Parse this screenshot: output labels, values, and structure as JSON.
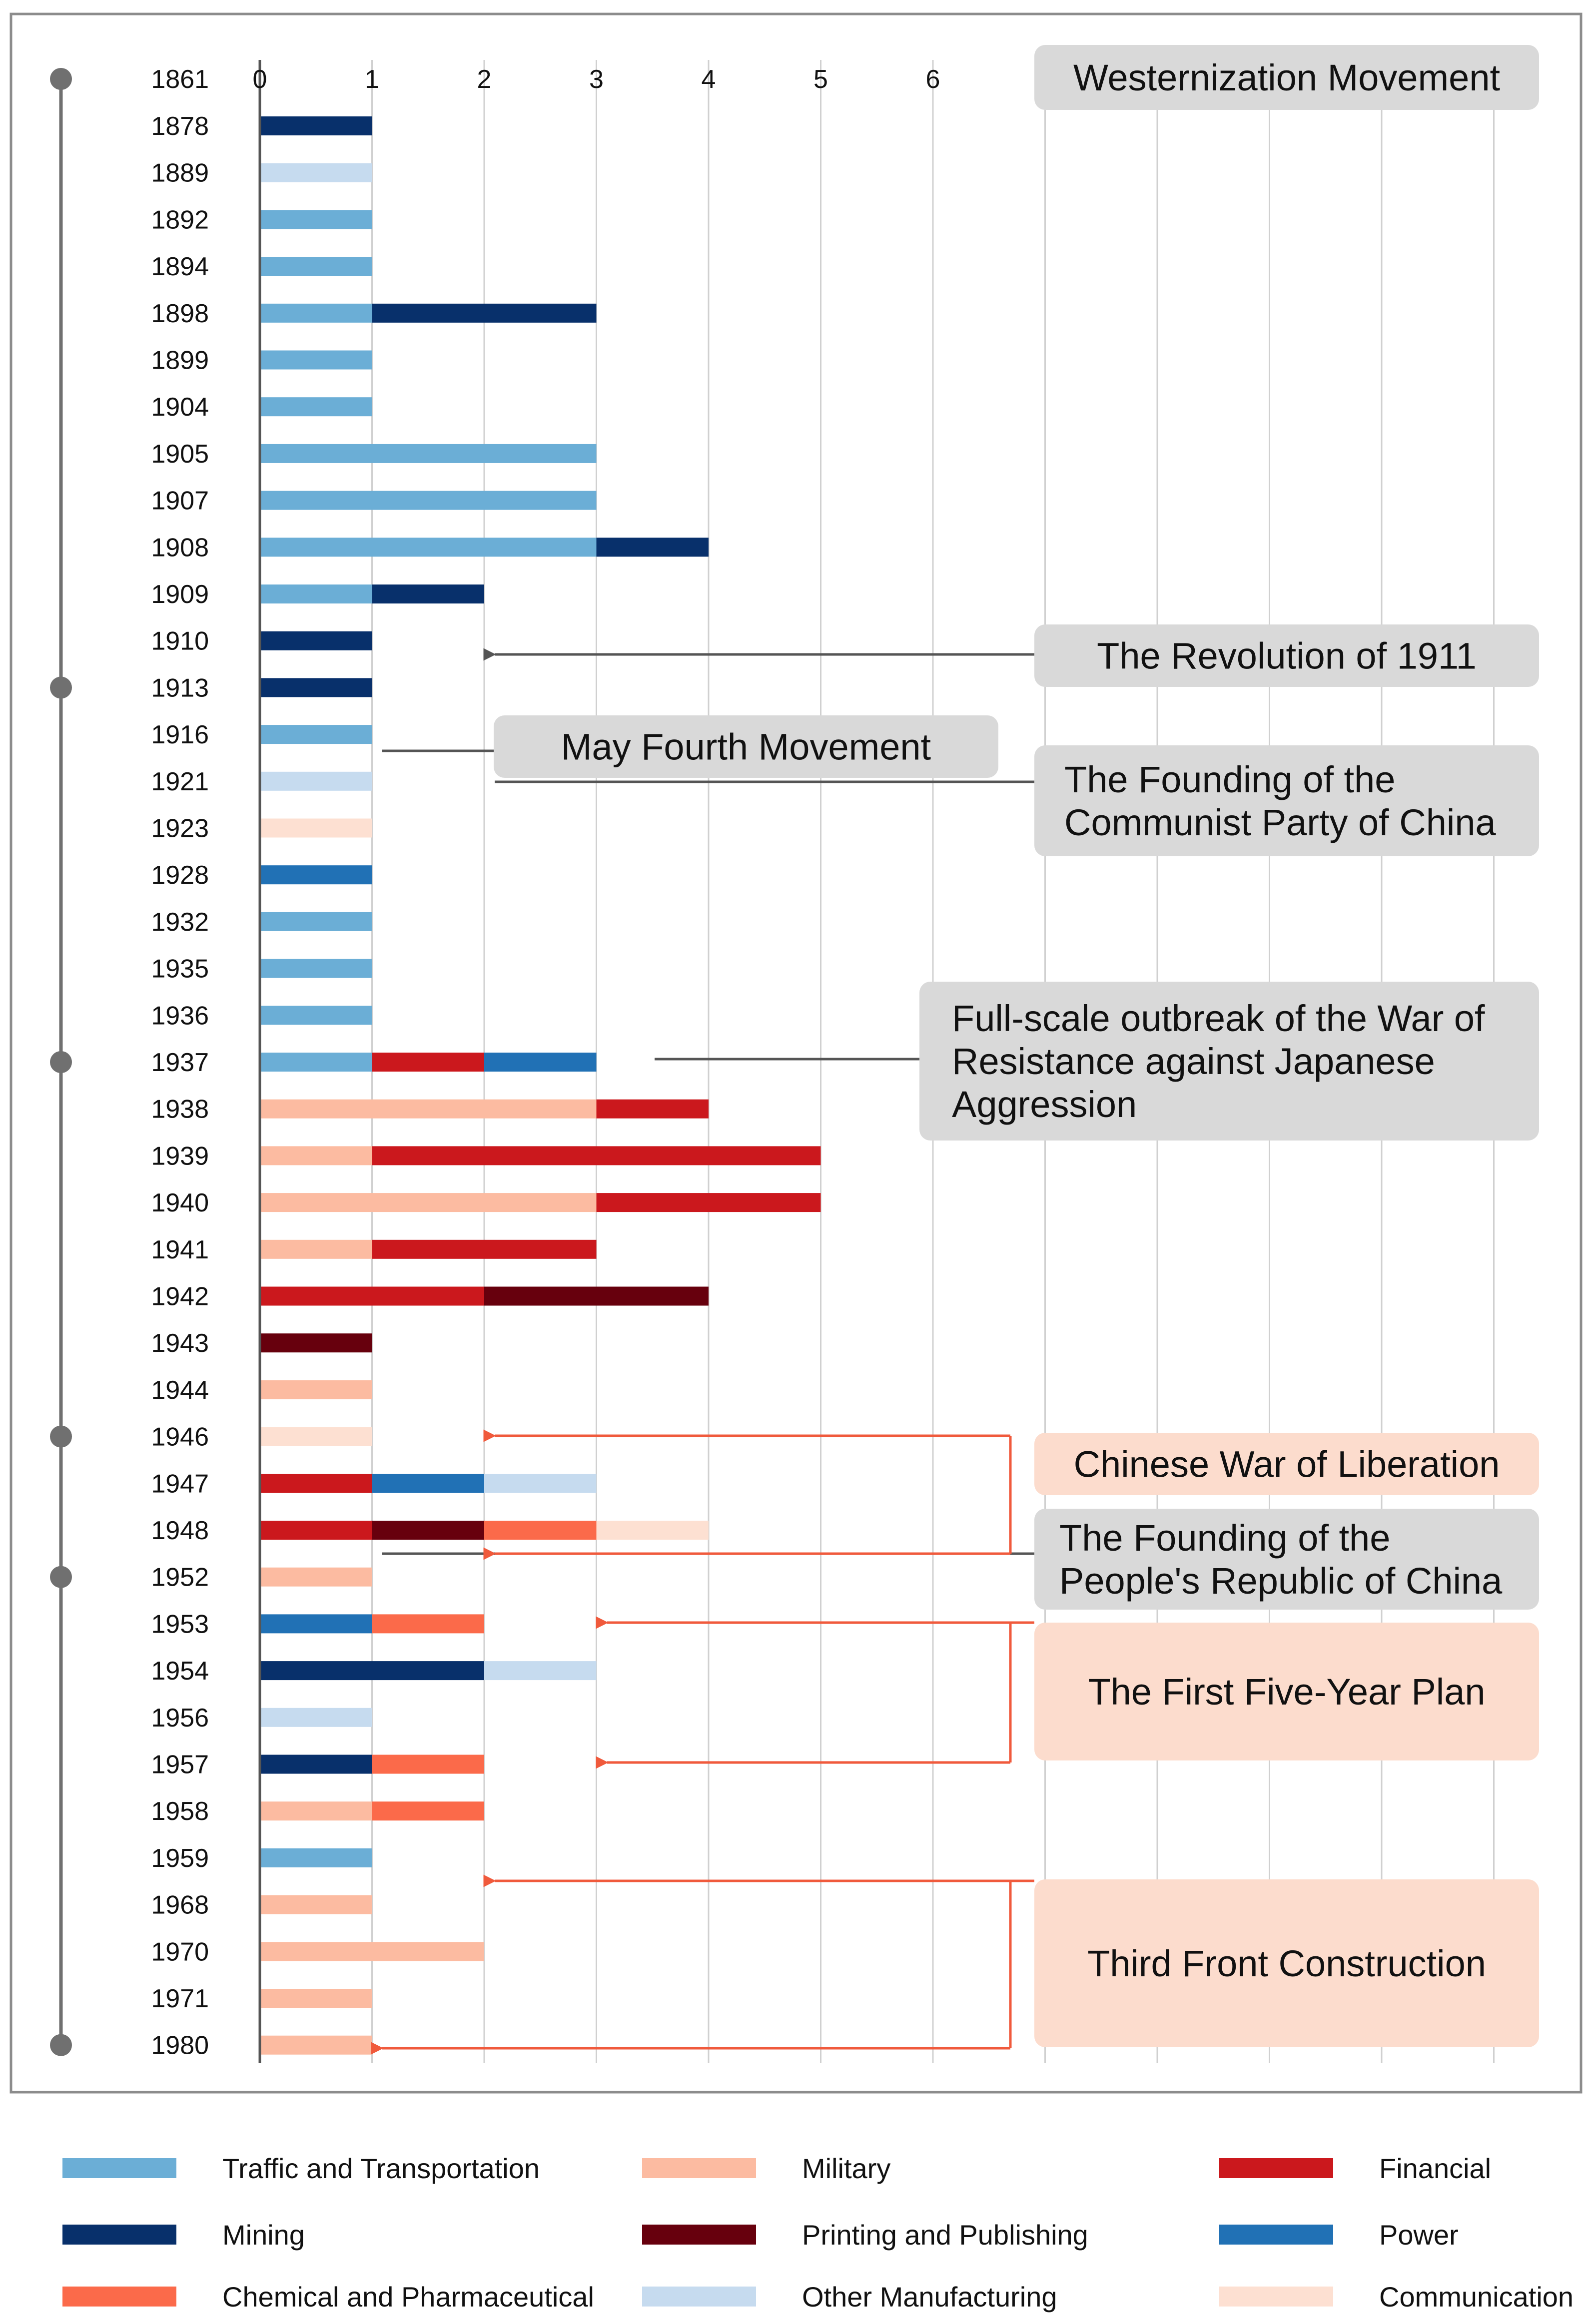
{
  "chart_data": {
    "type": "bar",
    "stacked": true,
    "orientation": "horizontal",
    "x_ticks": [
      0,
      1,
      2,
      3,
      4,
      5,
      6
    ],
    "xlim": [
      0,
      11
    ],
    "timeline_header": "1861",
    "milestone_years": [
      "1861",
      "1913",
      "1937",
      "1946",
      "1952",
      "1980"
    ],
    "categories": [
      {
        "key": "traffic",
        "name": "Traffic and Transportation",
        "color": "#6BAED6"
      },
      {
        "key": "military",
        "name": "Military",
        "color": "#FCBBA1"
      },
      {
        "key": "financial",
        "name": "Financial",
        "color": "#CB181D"
      },
      {
        "key": "mining",
        "name": "Mining",
        "color": "#08306B"
      },
      {
        "key": "printing",
        "name": "Printing and Publishing",
        "color": "#67000D"
      },
      {
        "key": "power",
        "name": "Power",
        "color": "#2171B5"
      },
      {
        "key": "chemical",
        "name": "Chemical and Pharmaceutical",
        "color": "#FB6A4A"
      },
      {
        "key": "other",
        "name": "Other Manufacturing",
        "color": "#C6DBEF"
      },
      {
        "key": "communication",
        "name": "Communication",
        "color": "#FDE0D2"
      }
    ],
    "rows": [
      {
        "year": "1878",
        "segments": [
          [
            "mining",
            1
          ]
        ]
      },
      {
        "year": "1889",
        "segments": [
          [
            "other",
            1
          ]
        ]
      },
      {
        "year": "1892",
        "segments": [
          [
            "traffic",
            1
          ]
        ]
      },
      {
        "year": "1894",
        "segments": [
          [
            "traffic",
            1
          ]
        ]
      },
      {
        "year": "1898",
        "segments": [
          [
            "traffic",
            1
          ],
          [
            "mining",
            2
          ]
        ]
      },
      {
        "year": "1899",
        "segments": [
          [
            "traffic",
            1
          ]
        ]
      },
      {
        "year": "1904",
        "segments": [
          [
            "traffic",
            1
          ]
        ]
      },
      {
        "year": "1905",
        "segments": [
          [
            "traffic",
            3
          ]
        ]
      },
      {
        "year": "1907",
        "segments": [
          [
            "traffic",
            3
          ]
        ]
      },
      {
        "year": "1908",
        "segments": [
          [
            "traffic",
            3
          ],
          [
            "mining",
            1
          ]
        ]
      },
      {
        "year": "1909",
        "segments": [
          [
            "traffic",
            1
          ],
          [
            "mining",
            1
          ]
        ]
      },
      {
        "year": "1910",
        "segments": [
          [
            "mining",
            1
          ]
        ]
      },
      {
        "year": "1913",
        "segments": [
          [
            "mining",
            1
          ]
        ]
      },
      {
        "year": "1916",
        "segments": [
          [
            "traffic",
            1
          ]
        ]
      },
      {
        "year": "1921",
        "segments": [
          [
            "other",
            1
          ]
        ]
      },
      {
        "year": "1923",
        "segments": [
          [
            "communication",
            1
          ]
        ]
      },
      {
        "year": "1928",
        "segments": [
          [
            "power",
            1
          ]
        ]
      },
      {
        "year": "1932",
        "segments": [
          [
            "traffic",
            1
          ]
        ]
      },
      {
        "year": "1935",
        "segments": [
          [
            "traffic",
            1
          ]
        ]
      },
      {
        "year": "1936",
        "segments": [
          [
            "traffic",
            1
          ]
        ]
      },
      {
        "year": "1937",
        "segments": [
          [
            "traffic",
            1
          ],
          [
            "financial",
            1
          ],
          [
            "power",
            1
          ]
        ]
      },
      {
        "year": "1938",
        "segments": [
          [
            "military",
            3
          ],
          [
            "financial",
            1
          ]
        ]
      },
      {
        "year": "1939",
        "segments": [
          [
            "military",
            1
          ],
          [
            "financial",
            4
          ]
        ]
      },
      {
        "year": "1940",
        "segments": [
          [
            "military",
            3
          ],
          [
            "financial",
            2
          ]
        ]
      },
      {
        "year": "1941",
        "segments": [
          [
            "military",
            1
          ],
          [
            "financial",
            2
          ]
        ]
      },
      {
        "year": "1942",
        "segments": [
          [
            "financial",
            2
          ],
          [
            "printing",
            2
          ]
        ]
      },
      {
        "year": "1943",
        "segments": [
          [
            "printing",
            1
          ]
        ]
      },
      {
        "year": "1944",
        "segments": [
          [
            "military",
            1
          ]
        ]
      },
      {
        "year": "1946",
        "segments": [
          [
            "communication",
            1
          ]
        ]
      },
      {
        "year": "1947",
        "segments": [
          [
            "financial",
            1
          ],
          [
            "power",
            1
          ],
          [
            "other",
            1
          ]
        ]
      },
      {
        "year": "1948",
        "segments": [
          [
            "financial",
            1
          ],
          [
            "printing",
            1
          ],
          [
            "chemical",
            1
          ],
          [
            "communication",
            1
          ]
        ]
      },
      {
        "year": "1952",
        "segments": [
          [
            "military",
            1
          ]
        ]
      },
      {
        "year": "1953",
        "segments": [
          [
            "power",
            1
          ],
          [
            "chemical",
            1
          ]
        ]
      },
      {
        "year": "1954",
        "segments": [
          [
            "mining",
            2
          ],
          [
            "other",
            1
          ]
        ]
      },
      {
        "year": "1956",
        "segments": [
          [
            "other",
            1
          ]
        ]
      },
      {
        "year": "1957",
        "segments": [
          [
            "mining",
            1
          ],
          [
            "chemical",
            1
          ]
        ]
      },
      {
        "year": "1958",
        "segments": [
          [
            "military",
            1
          ],
          [
            "chemical",
            1
          ]
        ]
      },
      {
        "year": "1959",
        "segments": [
          [
            "traffic",
            1
          ]
        ]
      },
      {
        "year": "1968",
        "segments": [
          [
            "military",
            1
          ]
        ]
      },
      {
        "year": "1970",
        "segments": [
          [
            "military",
            2
          ]
        ]
      },
      {
        "year": "1971",
        "segments": [
          [
            "military",
            1
          ]
        ]
      },
      {
        "year": "1980",
        "segments": [
          [
            "military",
            1
          ]
        ]
      }
    ],
    "annotations": [
      {
        "key": "westernization",
        "lines": [
          "Westernization Movement"
        ],
        "style": "gray"
      },
      {
        "key": "revolution1911",
        "lines": [
          "The Revolution of 1911"
        ],
        "style": "gray"
      },
      {
        "key": "mayfourth",
        "lines": [
          "May Fourth Movement"
        ],
        "style": "gray"
      },
      {
        "key": "cpc",
        "lines": [
          "The Founding of the",
          "Communist Party of China"
        ],
        "style": "gray"
      },
      {
        "key": "war_resistance",
        "lines": [
          "Full-scale outbreak of the War of",
          "Resistance against Japanese",
          "Aggression"
        ],
        "style": "gray"
      },
      {
        "key": "liberation",
        "lines": [
          "Chinese War of Liberation"
        ],
        "style": "salmon"
      },
      {
        "key": "prc",
        "lines": [
          "The Founding of the",
          "People's Republic of China"
        ],
        "style": "gray"
      },
      {
        "key": "fiveyear",
        "lines": [
          "The First Five-Year Plan"
        ],
        "style": "salmon"
      },
      {
        "key": "thirdfront",
        "lines": [
          "Third Front Construction"
        ],
        "style": "salmon"
      }
    ],
    "legend_position": "bottom"
  },
  "colors": {
    "gray_box": "#D9D9D9",
    "salmon_box": "#FCDCCD",
    "gray_arrow": "#555555",
    "red_arrow": "#F05A3C",
    "timeline": "#707070",
    "grid": "#D0D0D0",
    "frame": "#8C8C8C"
  }
}
